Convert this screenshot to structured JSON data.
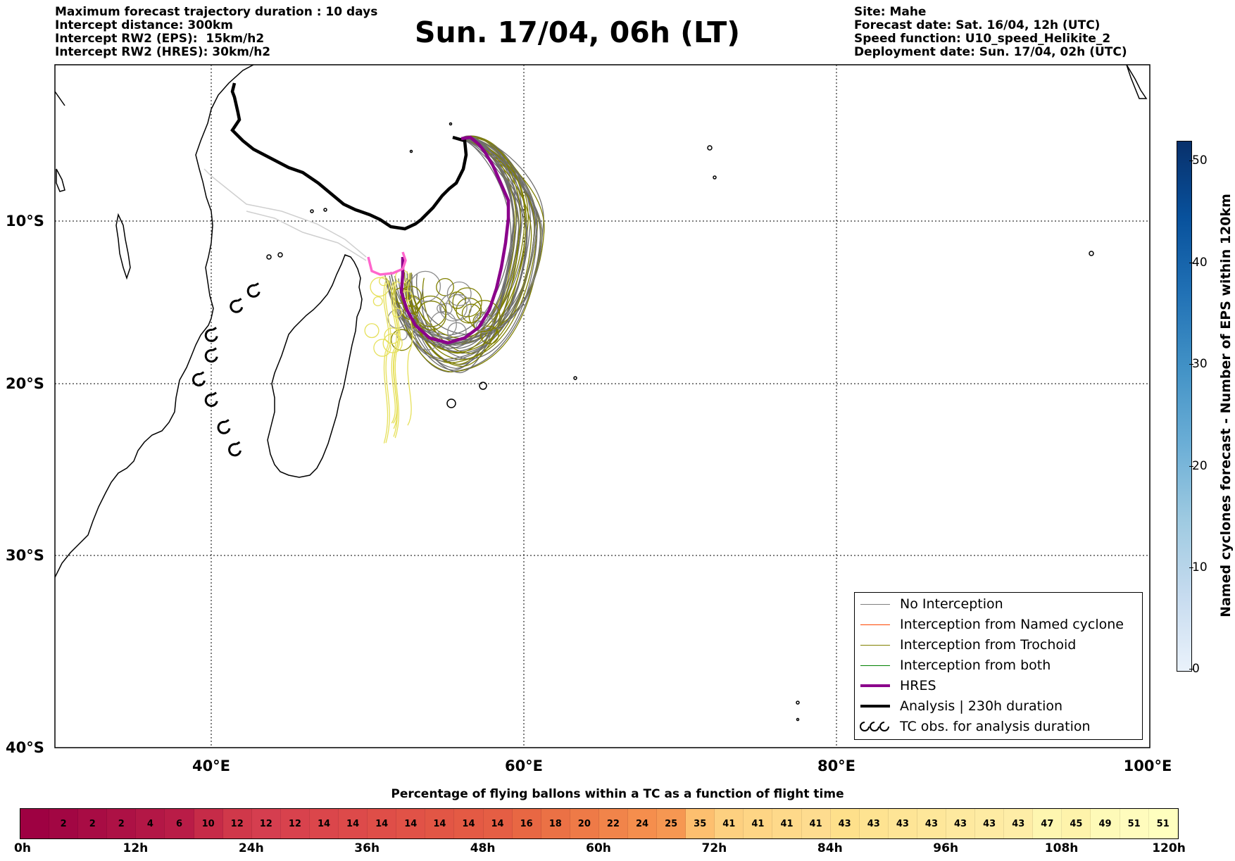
{
  "header_left": [
    "Maximum forecast trajectory duration : 10 days",
    "Intercept distance: 300km",
    "Intercept RW2 (EPS):  15km/h2",
    "Intercept RW2 (HRES): 30km/h2"
  ],
  "header_right": [
    "Site: Mahe",
    "Forecast date: Sat. 16/04, 12h (UTC)",
    "Speed function: U10_speed_Helikite_2",
    "Deployment date: Sun. 17/04, 02h (UTC)"
  ],
  "title": "Sun. 17/04, 06h (LT)",
  "map": {
    "lon_range": [
      30,
      100
    ],
    "lat_range": [
      -40,
      0
    ],
    "lon_ticks": [
      "40°E",
      "60°E",
      "80°E",
      "100°E"
    ],
    "lat_ticks": [
      "10°S",
      "20°S",
      "30°S",
      "40°S"
    ],
    "gridlines": "dotted",
    "site": {
      "name": "Mahe",
      "lon": 55.5,
      "lat": -4.6
    }
  },
  "legend": {
    "items": [
      {
        "label": "No Interception",
        "color": "#808080",
        "style": "thin"
      },
      {
        "label": "Interception from Named cyclone",
        "color": "#ff4500",
        "style": "thin"
      },
      {
        "label": "Interception from Trochoid",
        "color": "#808000",
        "style": "thin"
      },
      {
        "label": "Interception from both",
        "color": "#008000",
        "style": "thin"
      },
      {
        "label": "HRES",
        "color": "#8b008b",
        "style": "thick"
      },
      {
        "label": "Analysis | 230h duration",
        "color": "#000000",
        "style": "thick"
      },
      {
        "label": "TC obs. for analysis duration",
        "color": "#000000",
        "style": "cyclone-icon"
      }
    ]
  },
  "colorbar_vertical": {
    "label": "Named cyclones forecast - Number of EPS within 120km",
    "ticks": [
      "0",
      "10",
      "20",
      "30",
      "40",
      "50"
    ],
    "range": [
      0,
      52
    ]
  },
  "colorbar_horizontal": {
    "title": "Percentage of flying ballons within a TC as a function of flight time",
    "values": [
      "",
      "2",
      "2",
      "2",
      "4",
      "6",
      "10",
      "12",
      "12",
      "12",
      "14",
      "14",
      "14",
      "14",
      "14",
      "14",
      "14",
      "16",
      "18",
      "20",
      "22",
      "24",
      "25",
      "35",
      "41",
      "41",
      "41",
      "41",
      "43",
      "43",
      "43",
      "43",
      "43",
      "43",
      "43",
      "47",
      "45",
      "49",
      "51",
      "51"
    ],
    "colors": [
      "#9e0142",
      "#a20643",
      "#a80c44",
      "#ad1145",
      "#b31746",
      "#b91c47",
      "#c62b48",
      "#d0384a",
      "#d53e4f",
      "#d8424d",
      "#db464b",
      "#dd4a4a",
      "#df4e48",
      "#e15247",
      "#e25645",
      "#e45a44",
      "#e55e44",
      "#e86743",
      "#eb7145",
      "#ee7a47",
      "#f1844a",
      "#f58e4d",
      "#f69752",
      "#fdbf6f",
      "#fdd080",
      "#fed585",
      "#fed98a",
      "#fedc8f",
      "#fee08b",
      "#fee391",
      "#fee596",
      "#fee79a",
      "#fee99f",
      "#feeba3",
      "#feeda7",
      "#fef6b0",
      "#fef3ab",
      "#fefab8",
      "#fffcbd",
      "#ffffbf"
    ],
    "ticks": [
      "0h",
      "12h",
      "24h",
      "36h",
      "48h",
      "60h",
      "72h",
      "84h",
      "96h",
      "108h",
      "120h"
    ]
  },
  "tc_obs": [
    {
      "lon": 42.7,
      "lat": -13.3
    },
    {
      "lon": 41.6,
      "lat": -14.2
    },
    {
      "lon": 40.0,
      "lat": -15.9
    },
    {
      "lon": 40.0,
      "lat": -17.1
    },
    {
      "lon": 39.2,
      "lat": -18.5
    },
    {
      "lon": 40.0,
      "lat": -19.7
    },
    {
      "lon": 40.8,
      "lat": -21.3
    },
    {
      "lon": 41.5,
      "lat": -22.6
    }
  ]
}
